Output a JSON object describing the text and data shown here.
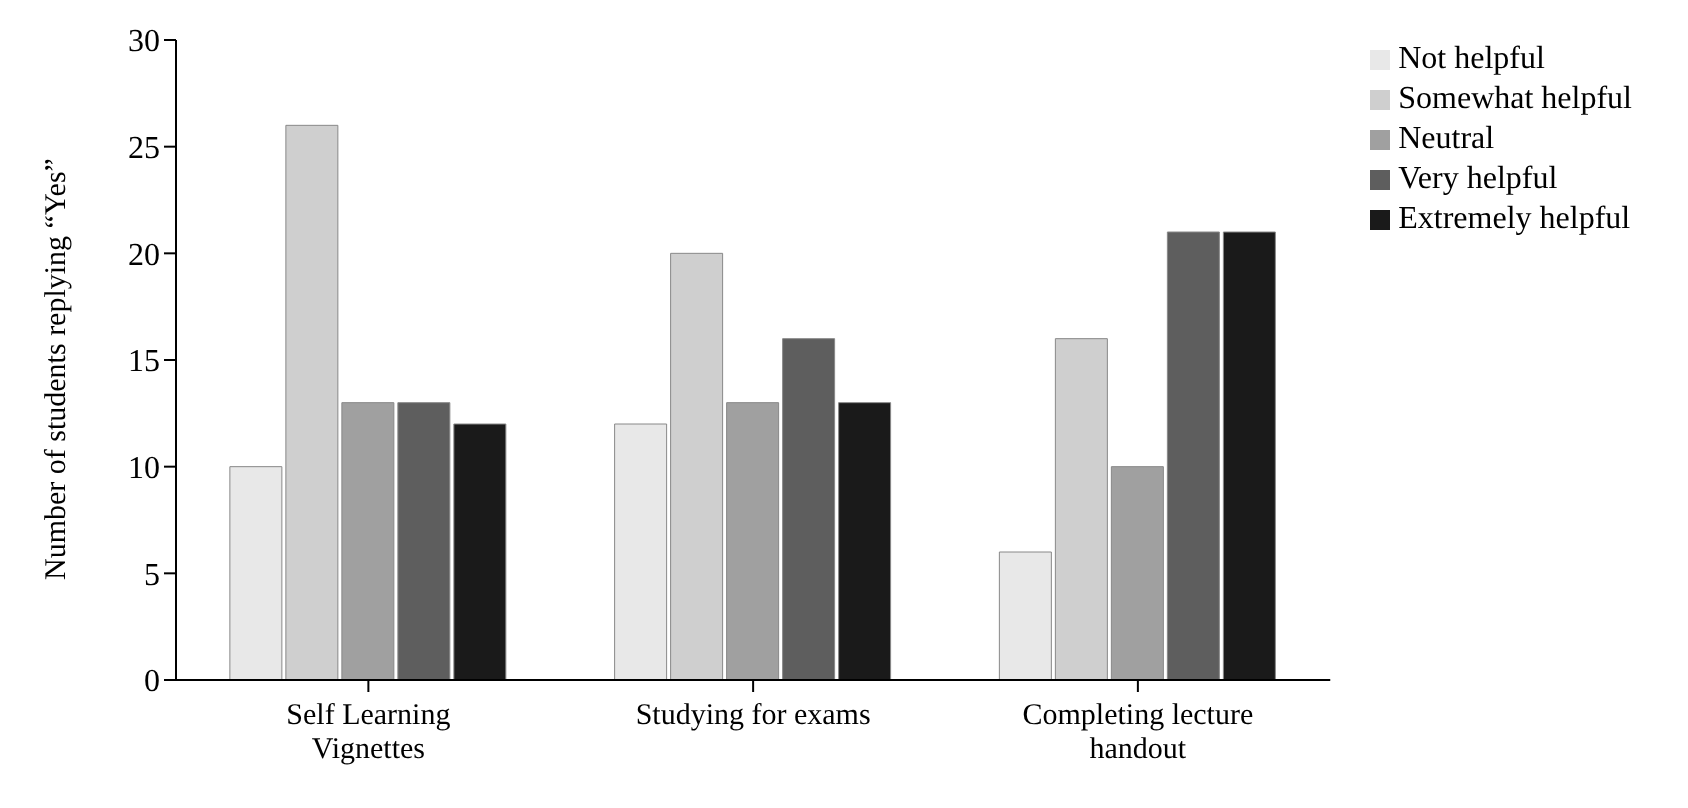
{
  "chart_data": {
    "type": "bar",
    "ylabel": "Number of students replying “Yes”",
    "categories": [
      "Self Learning Vignettes",
      "Studying for exams",
      "Completing lecture handout"
    ],
    "series": [
      {
        "name": "Not helpful",
        "color": "#e8e8e8",
        "values": [
          10,
          12,
          6
        ]
      },
      {
        "name": "Somewhat helpful",
        "color": "#cfcfcf",
        "values": [
          26,
          20,
          16
        ]
      },
      {
        "name": "Neutral",
        "color": "#a0a0a0",
        "values": [
          13,
          13,
          10
        ]
      },
      {
        "name": "Very helpful",
        "color": "#5e5e5e",
        "values": [
          13,
          16,
          21
        ]
      },
      {
        "name": "Extremely helpful",
        "color": "#1a1a1a",
        "values": [
          12,
          13,
          21
        ]
      }
    ],
    "ylim": [
      0,
      30
    ],
    "yticks": [
      0,
      5,
      10,
      15,
      20,
      25,
      30
    ],
    "legend": "top right"
  }
}
